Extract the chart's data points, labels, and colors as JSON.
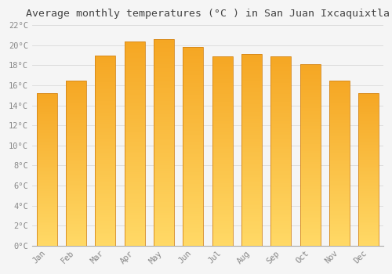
{
  "months": [
    "Jan",
    "Feb",
    "Mar",
    "Apr",
    "May",
    "Jun",
    "Jul",
    "Aug",
    "Sep",
    "Oct",
    "Nov",
    "Dec"
  ],
  "temperatures": [
    15.2,
    16.5,
    19.0,
    20.4,
    20.6,
    19.8,
    18.9,
    19.1,
    18.9,
    18.1,
    16.5,
    15.2
  ],
  "title": "Average monthly temperatures (°C ) in San Juan Ixcaquixtla",
  "ylim": [
    0,
    22
  ],
  "yticks": [
    0,
    2,
    4,
    6,
    8,
    10,
    12,
    14,
    16,
    18,
    20,
    22
  ],
  "bar_color_bottom": "#FFD966",
  "bar_color_top": "#F5A623",
  "bar_edge_color": "#D4861A",
  "background_color": "#F5F5F5",
  "grid_color": "#DDDDDD",
  "tick_label_color": "#888888",
  "title_color": "#444444",
  "title_fontsize": 9.5,
  "tick_fontsize": 7.5
}
